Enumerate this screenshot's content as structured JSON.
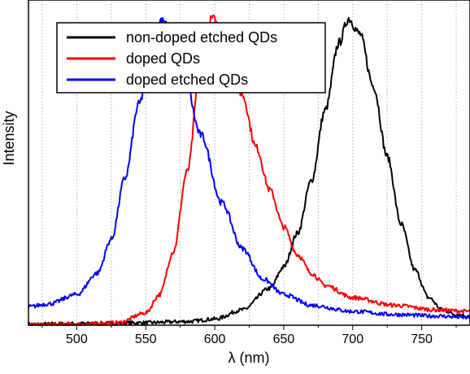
{
  "chart_data": {
    "type": "line",
    "title": "",
    "xlabel": "λ (nm)",
    "ylabel": "Intensity",
    "xlim": [
      465,
      785
    ],
    "ylim": [
      0,
      1.06
    ],
    "xticks": [
      500,
      550,
      600,
      650,
      700,
      750
    ],
    "x_minor_gridlines": true,
    "y_ticks_shown": false,
    "legend_position": "top-left",
    "series": [
      {
        "name": "non-doped etched QDs",
        "color": "#000000",
        "points": [
          [
            465,
            0.003
          ],
          [
            500,
            0.005
          ],
          [
            550,
            0.008
          ],
          [
            580,
            0.012
          ],
          [
            600,
            0.02
          ],
          [
            620,
            0.05
          ],
          [
            640,
            0.12
          ],
          [
            650,
            0.19
          ],
          [
            660,
            0.3
          ],
          [
            670,
            0.47
          ],
          [
            680,
            0.7
          ],
          [
            690,
            0.92
          ],
          [
            697,
            1.0
          ],
          [
            705,
            0.95
          ],
          [
            715,
            0.78
          ],
          [
            725,
            0.55
          ],
          [
            735,
            0.33
          ],
          [
            745,
            0.18
          ],
          [
            755,
            0.09
          ],
          [
            765,
            0.05
          ],
          [
            775,
            0.035
          ],
          [
            785,
            0.03
          ]
        ]
      },
      {
        "name": "doped QDs",
        "color": "#ff0000",
        "points": [
          [
            465,
            0.0
          ],
          [
            500,
            0.003
          ],
          [
            530,
            0.008
          ],
          [
            550,
            0.04
          ],
          [
            560,
            0.1
          ],
          [
            570,
            0.24
          ],
          [
            580,
            0.5
          ],
          [
            590,
            0.85
          ],
          [
            598,
            1.0
          ],
          [
            610,
            0.9
          ],
          [
            620,
            0.75
          ],
          [
            630,
            0.58
          ],
          [
            640,
            0.44
          ],
          [
            650,
            0.32
          ],
          [
            660,
            0.23
          ],
          [
            670,
            0.17
          ],
          [
            680,
            0.13
          ],
          [
            700,
            0.09
          ],
          [
            730,
            0.065
          ],
          [
            760,
            0.05
          ],
          [
            785,
            0.045
          ]
        ]
      },
      {
        "name": "doped etched QDs",
        "color": "#0000ff",
        "points": [
          [
            465,
            0.06
          ],
          [
            480,
            0.07
          ],
          [
            500,
            0.1
          ],
          [
            515,
            0.17
          ],
          [
            525,
            0.28
          ],
          [
            535,
            0.48
          ],
          [
            545,
            0.72
          ],
          [
            555,
            0.92
          ],
          [
            562,
            1.0
          ],
          [
            575,
            0.88
          ],
          [
            590,
            0.62
          ],
          [
            605,
            0.4
          ],
          [
            620,
            0.25
          ],
          [
            635,
            0.15
          ],
          [
            650,
            0.1
          ],
          [
            670,
            0.065
          ],
          [
            700,
            0.045
          ],
          [
            730,
            0.035
          ],
          [
            760,
            0.03
          ],
          [
            785,
            0.025
          ]
        ]
      }
    ]
  }
}
